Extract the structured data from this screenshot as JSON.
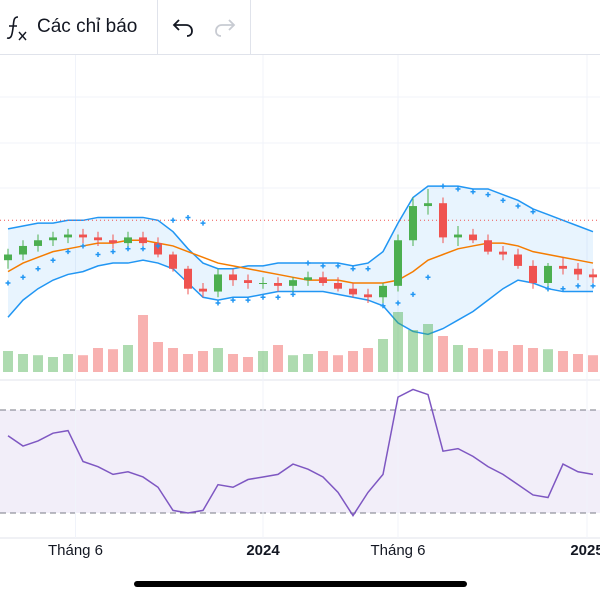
{
  "toolbar": {
    "indicators_label": "Các chỉ báo"
  },
  "chart_data": {
    "type": "candlestick",
    "ylim": [
      0,
      100
    ],
    "open": [
      28,
      30,
      33,
      35,
      36,
      37,
      36,
      35,
      34,
      36,
      34,
      30,
      25,
      18,
      17,
      23,
      21,
      20,
      20,
      19,
      21,
      22,
      20,
      18,
      16,
      15,
      19,
      35,
      47,
      48,
      36,
      37,
      35,
      31,
      30,
      26,
      20,
      26,
      25,
      23
    ],
    "high": [
      32,
      35,
      37,
      38,
      39,
      39,
      38,
      37,
      38,
      38,
      36,
      31,
      26,
      20,
      25,
      25,
      23,
      22,
      22,
      22,
      24,
      24,
      22,
      20,
      18,
      20,
      37,
      50,
      53,
      50,
      40,
      39,
      37,
      33,
      32,
      28,
      27,
      29,
      27,
      25
    ],
    "low": [
      25,
      28,
      31,
      33,
      34,
      34,
      33,
      32,
      32,
      33,
      29,
      24,
      16,
      15,
      15,
      19,
      18,
      18,
      17,
      17,
      19,
      19,
      17,
      15,
      13,
      13,
      17,
      33,
      44,
      34,
      33,
      34,
      30,
      28,
      25,
      18,
      17,
      23,
      21,
      20
    ],
    "close": [
      30,
      33,
      35,
      36,
      37,
      36,
      35,
      34,
      36,
      34,
      30,
      25,
      18,
      17,
      23,
      21,
      20,
      20,
      19,
      21,
      22,
      20,
      18,
      16,
      15,
      19,
      35,
      47,
      48,
      36,
      37,
      35,
      31,
      30,
      26,
      20,
      26,
      25,
      23,
      22
    ],
    "bb_upper": [
      39,
      40,
      41,
      41,
      42,
      42,
      43,
      43,
      43,
      43,
      42,
      38,
      32,
      27,
      25,
      25,
      26,
      26,
      27,
      27,
      27,
      27,
      27,
      26,
      27,
      31,
      41,
      50,
      54,
      54,
      54,
      53,
      53,
      51,
      49,
      46,
      44,
      42,
      40,
      38
    ],
    "bb_mid": [
      24,
      27,
      29,
      31,
      32,
      33,
      34,
      34,
      35,
      35,
      34,
      33,
      31,
      29,
      27,
      26,
      25,
      24,
      23,
      22,
      21,
      21,
      21,
      20,
      20,
      20,
      21,
      24,
      28,
      30,
      32,
      33,
      34,
      34,
      33,
      31,
      30,
      29,
      28,
      27
    ],
    "bb_lower": [
      8,
      14,
      18,
      21,
      23,
      24,
      26,
      27,
      27,
      28,
      27,
      25,
      20,
      15,
      14,
      15,
      15,
      16,
      17,
      17,
      17,
      17,
      16,
      15,
      14,
      12,
      6,
      3,
      2,
      4,
      7,
      10,
      14,
      18,
      21,
      20,
      18,
      17,
      17,
      17
    ],
    "sar": [
      20,
      22,
      25,
      28,
      31,
      33,
      30,
      31,
      32,
      32,
      33,
      42,
      43,
      41,
      13,
      14,
      14,
      15,
      15,
      16,
      27,
      26,
      26,
      25,
      25,
      12,
      13,
      16,
      22,
      54,
      53,
      52,
      51,
      49,
      47,
      45,
      18,
      18,
      19,
      19
    ],
    "volume": [
      35,
      30,
      28,
      25,
      30,
      28,
      40,
      38,
      45,
      95,
      50,
      40,
      30,
      35,
      40,
      30,
      25,
      35,
      45,
      28,
      30,
      35,
      28,
      35,
      40,
      55,
      100,
      70,
      80,
      60,
      45,
      40,
      38,
      35,
      45,
      40,
      38,
      35,
      30,
      28
    ],
    "rsi_ylim": [
      0,
      100
    ],
    "rsi": [
      60,
      56,
      58,
      61,
      62,
      50,
      48,
      45,
      46,
      44,
      40,
      31,
      30,
      31,
      41,
      40,
      43,
      44,
      45,
      49,
      47,
      44,
      38,
      29,
      38,
      45,
      75,
      78,
      76,
      54,
      55,
      52,
      48,
      45,
      41,
      37,
      36,
      49,
      46,
      45
    ],
    "rsi_levels": [
      70,
      30
    ],
    "price_line": 42,
    "up_color": "#4caf50",
    "down_color": "#ef5350",
    "band_color": "#2196f3",
    "mid_color": "#f57c00",
    "rsi_color": "#7e57c2",
    "xticks": [
      {
        "value": 4.5,
        "label": "Tháng 6"
      },
      {
        "value": 17,
        "label": "2024"
      },
      {
        "value": 26,
        "label": "Tháng 6"
      },
      {
        "value": 38.6,
        "label": "2025"
      }
    ]
  }
}
